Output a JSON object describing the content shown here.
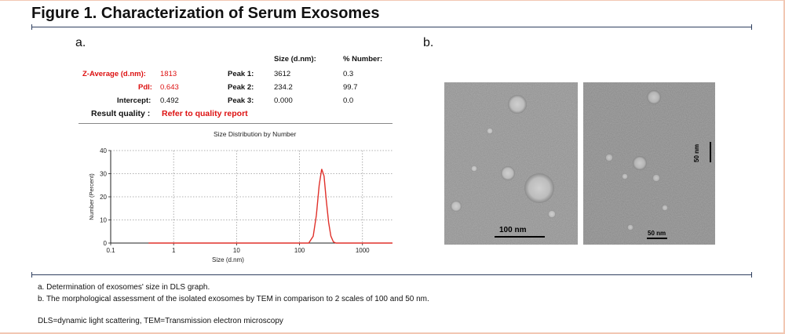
{
  "figure": {
    "title": "Figure 1. Characterization of Serum Exosomes",
    "panel_a_label": "a.",
    "panel_b_label": "b."
  },
  "dls_report": {
    "size_header": "Size (d.nm):",
    "number_header": "% Number:",
    "z_average_label": "Z-Average (d.nm):",
    "z_average_value": "1813",
    "pdi_label": "PdI:",
    "pdi_value": "0.643",
    "intercept_label": "Intercept:",
    "intercept_value": "0.492",
    "result_quality_label": "Result quality :",
    "result_quality_value": "Refer to quality report",
    "peaks": [
      {
        "label": "Peak 1:",
        "size": "3612",
        "number": "0.3"
      },
      {
        "label": "Peak 2:",
        "size": "234.2",
        "number": "99.7"
      },
      {
        "label": "Peak 3:",
        "size": "0.000",
        "number": "0.0"
      }
    ]
  },
  "chart_data": {
    "type": "line",
    "title": "Size Distribution by Number",
    "xlabel": "Size (d.nm)",
    "ylabel": "Number (Percent)",
    "xscale": "log",
    "xlim": [
      0.1,
      3000
    ],
    "ylim": [
      0,
      40
    ],
    "x_ticks": [
      "0.1",
      "1",
      "10",
      "100",
      "1000"
    ],
    "y_ticks": [
      "0",
      "10",
      "20",
      "30",
      "40"
    ],
    "grid": true,
    "series": [
      {
        "color": "#e0302a",
        "x": [
          0.4,
          140,
          165,
          185,
          205,
          225,
          245,
          265,
          290,
          315,
          345,
          380,
          420,
          3000
        ],
        "y": [
          0,
          0,
          3,
          12,
          25,
          32,
          29,
          19,
          9,
          3,
          0.5,
          0,
          0,
          0
        ]
      }
    ]
  },
  "tem": {
    "scale_1": "100 nm",
    "scale_2": "50 nm",
    "scale_2_vertical": "50 nm"
  },
  "captions": {
    "a": "a. Determination of exosomes' size in DLS graph.",
    "b": "b. The morphological assessment of the isolated exosomes by TEM in comparison to 2 scales of 100 and 50 nm.",
    "abbreviations": "DLS=dynamic light scattering, TEM=Transmission electron microscopy"
  },
  "colors": {
    "rule": "#2f3f5f",
    "frame": "#f2c7b3",
    "accent_red": "#d11111"
  }
}
